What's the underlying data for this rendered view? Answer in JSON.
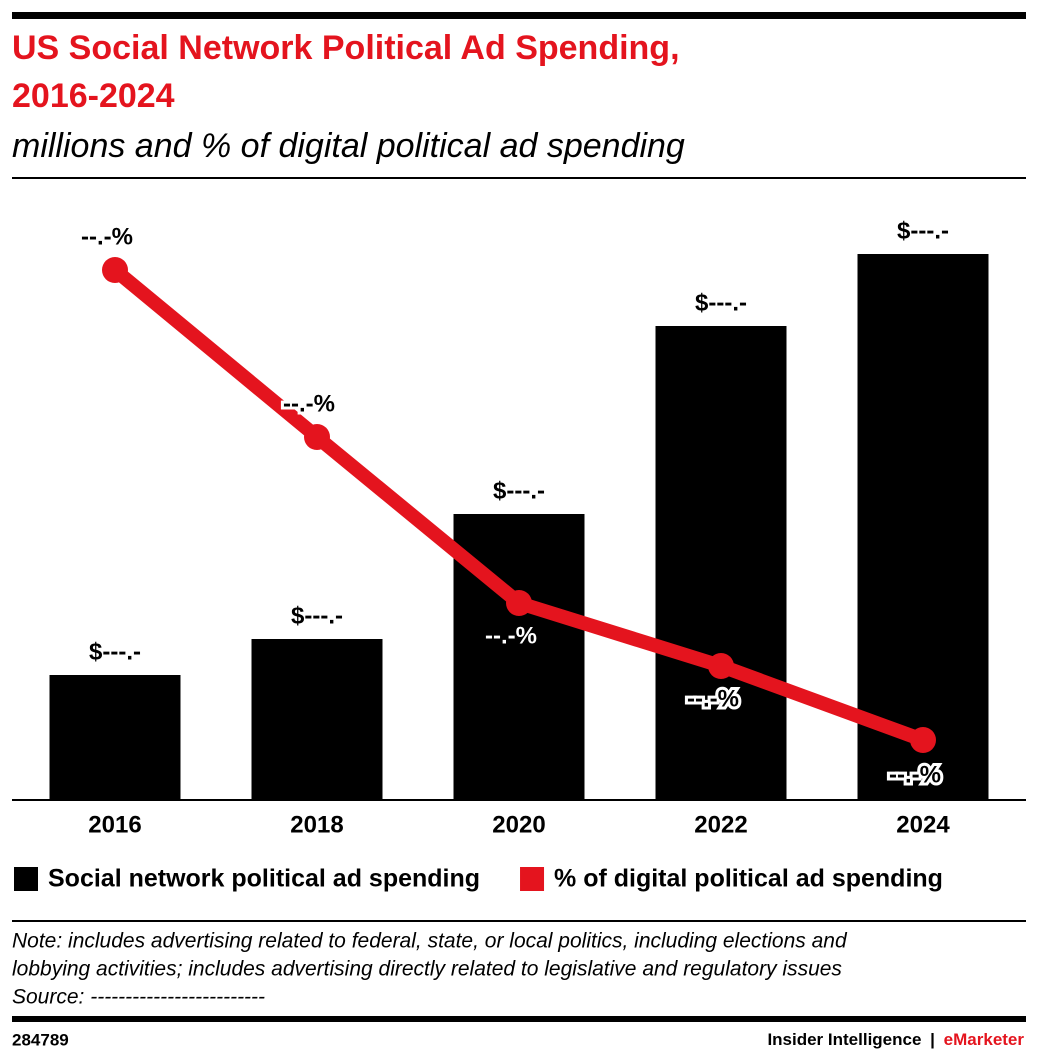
{
  "chart_data": {
    "type": "bar-line",
    "title": [
      "US Social Network Political Ad Spending,",
      "2016-2024"
    ],
    "subtitle": "millions and % of digital political ad spending",
    "categories": [
      "2016",
      "2018",
      "2020",
      "2022",
      "2024"
    ],
    "series": [
      {
        "name": "Social network political ad spending",
        "type": "bar",
        "color": "#000000",
        "values": [
          125,
          161,
          286,
          474,
          546
        ],
        "value_labels": [
          "$---.-",
          "$---.-",
          "$---.-",
          "$---.-",
          "$---.-"
        ]
      },
      {
        "name": "% of digital political ad spending",
        "type": "line",
        "axis": "y2",
        "color": "#e4141e",
        "values": [
          53,
          36.3,
          19.7,
          13.4,
          6
        ],
        "value_labels": [
          "--.-%",
          "--.-%",
          "--.-%",
          "--.-%",
          "--.-%"
        ]
      }
    ],
    "ylim": [
      0,
      600
    ],
    "y2lim": [
      0,
      60
    ],
    "notes": [
      "Note: includes advertising related to federal, state, or local politics, including elections and",
      "lobbying activities; includes advertising directly related to legislative and regulatory issues",
      "Source: -------------------------"
    ],
    "footer": {
      "id": "284789",
      "brand": "Insider Intelligence",
      "separator": "|",
      "brand2": "eMarketer"
    }
  }
}
